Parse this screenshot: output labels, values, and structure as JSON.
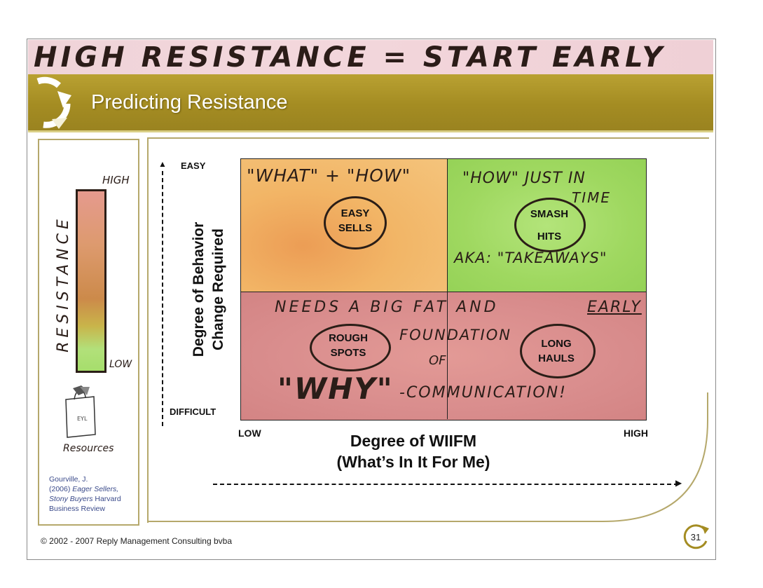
{
  "headline": "HIGH RESISTANCE = START EARLY",
  "title": "Predicting Resistance",
  "resistance_bar": {
    "label": "RESISTANCE",
    "high_label": "HIGH",
    "low_label": "LOW",
    "resources_label": "Resources"
  },
  "citation": {
    "author": "Gourville, J.",
    "year": "(2006)",
    "title_part": "Eager Sellers, Stony Buyers",
    "source": "Harvard Business Review"
  },
  "matrix": {
    "y_axis_title_line1": "Degree of Behavior",
    "y_axis_title_line2": "Change Required",
    "y_top": "EASY",
    "y_bottom": "DIFFICULT",
    "x_left": "LOW",
    "x_right": "HIGH",
    "x_axis_title_line1": "Degree of WIIFM",
    "x_axis_title_line2": "(What’s In It For Me)",
    "top_left_note": "\"WHAT\" + \"HOW\"",
    "top_left_line1": "EASY",
    "top_left_line2": "SELLS",
    "top_right_note_1": "\"HOW\" JUST IN",
    "top_right_note_2": "TIME",
    "top_right_line1": "SMASH",
    "top_right_line2": "HITS",
    "top_right_note_3": "AKA: \"TAKEAWAYS\"",
    "bottom_note_1": "NEEDS A BIG FAT AND",
    "bottom_note_1b": "EARLY",
    "bottom_note_2": "FOUNDATION",
    "bottom_note_3": "OF",
    "bottom_note_4": "\"WHY\"",
    "bottom_note_5": "-COMMUNICATION!",
    "bottom_left_line1": "ROUGH",
    "bottom_left_line2": "SPOTS",
    "bottom_right_line1": "LONG",
    "bottom_right_line2": "HAULS"
  },
  "footer": "© 2002 - 2007 Reply Management Consulting bvba",
  "page_number": "31",
  "colors": {
    "band": "#a48c22",
    "quad_easy_sells": "#f2b566",
    "quad_smash_hits": "#9fd860",
    "quad_bottom": "#d98d8d",
    "headline_strip": "#efd3d8"
  }
}
